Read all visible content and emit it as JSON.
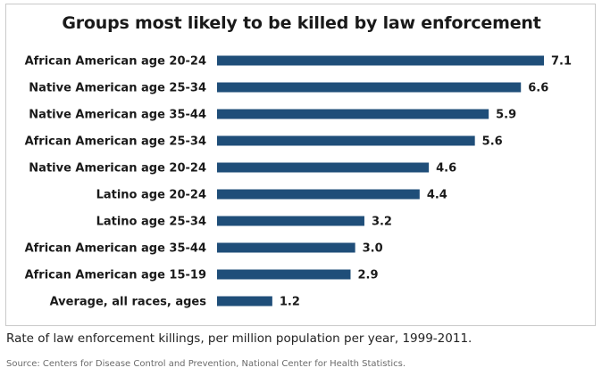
{
  "chart_data": {
    "type": "bar",
    "orientation": "horizontal",
    "title": "Groups most likely to be killed by law enforcement",
    "categories": [
      "African American age 20-24",
      "Native American age 25-34",
      "Native American age 35-44",
      "African American age 25-34",
      "Native American age 20-24",
      "Latino age 20-24",
      "Latino age 25-34",
      "African American age 35-44",
      "African American age 15-19",
      "Average, all races, ages"
    ],
    "values": [
      7.1,
      6.6,
      5.9,
      5.6,
      4.6,
      4.4,
      3.2,
      3.0,
      2.9,
      1.2
    ],
    "value_labels": [
      "7.1",
      "6.6",
      "5.9",
      "5.6",
      "4.6",
      "4.4",
      "3.2",
      "3.0",
      "2.9",
      "1.2"
    ],
    "xlim": [
      0,
      7.1
    ],
    "bar_color": "#1f4e79",
    "grid": false,
    "legend": "none"
  },
  "caption": "Rate of law enforcement killings, per million population per year, 1999-2011.",
  "source": "Source: Centers for Disease Control and Prevention, National Center for Health Statistics."
}
